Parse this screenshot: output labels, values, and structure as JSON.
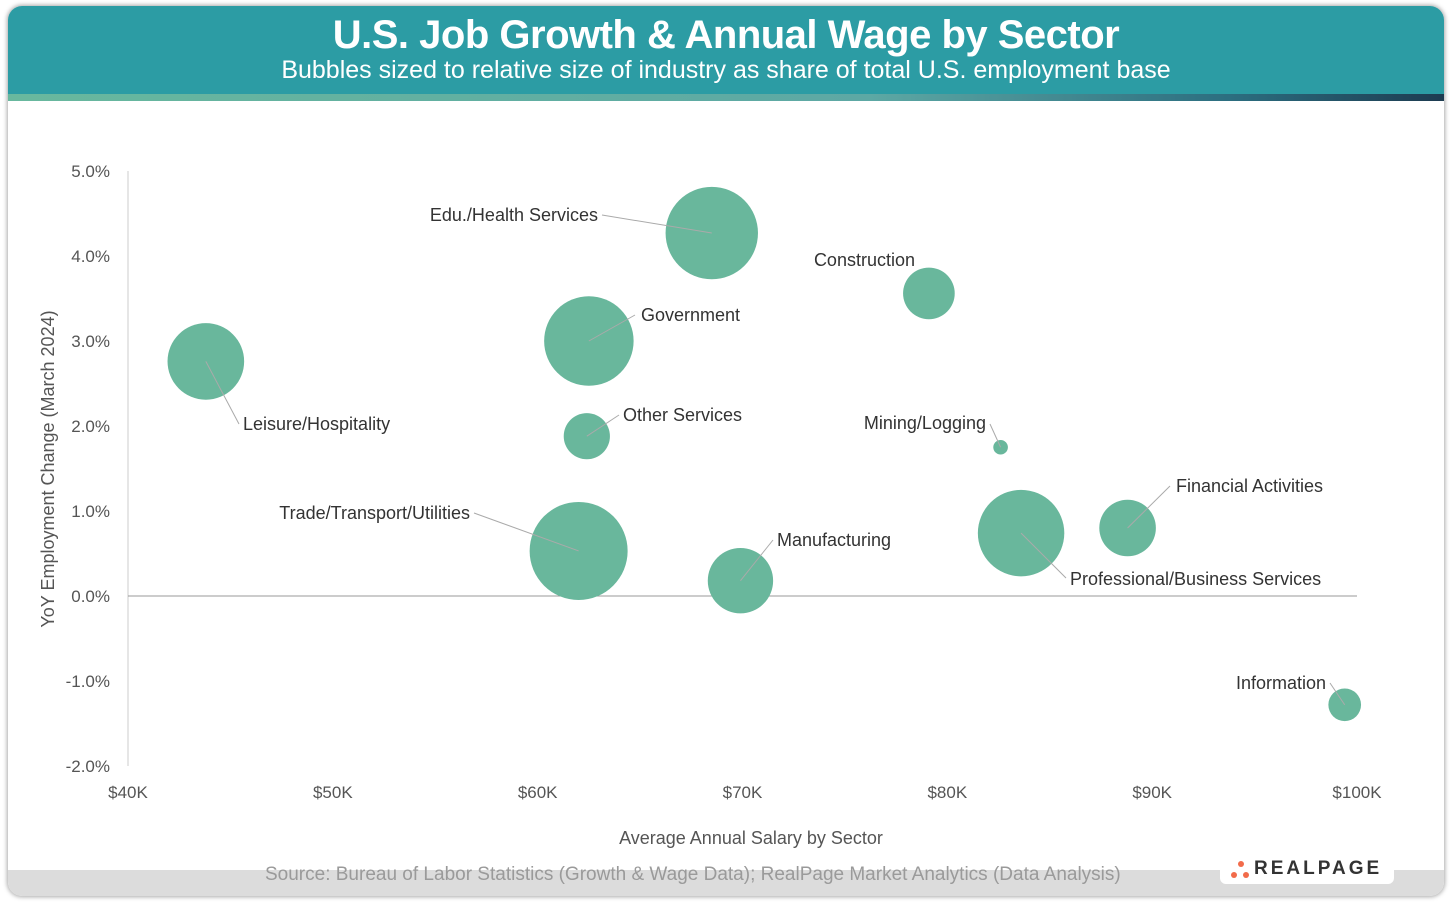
{
  "header": {
    "title": "U.S. Job Growth & Annual Wage by Sector",
    "subtitle": "Bubbles sized to relative size of industry as share of total U.S. employment base"
  },
  "footer": {
    "source": "Source: Bureau of Labor Statistics (Growth & Wage Data); RealPage Market Analytics (Data Analysis)",
    "logo": "REALPAGE"
  },
  "colors": {
    "header": "#2c9ca4",
    "bubble": "#69b79c",
    "logo_accent": "#f26b4a"
  },
  "chart_data": {
    "type": "bubble",
    "title": "U.S. Job Growth & Annual Wage by Sector",
    "xlabel": "Average Annual Salary by Sector",
    "ylabel": "YoY Employment Change (March 2024)",
    "xlim": [
      40000,
      100000
    ],
    "ylim": [
      -2.0,
      5.0
    ],
    "x_ticks": [
      "$40K",
      "$50K",
      "$60K",
      "$70K",
      "$80K",
      "$90K",
      "$100K"
    ],
    "y_ticks": [
      "5.0%",
      "4.0%",
      "3.0%",
      "2.0%",
      "1.0%",
      "0.0%",
      "-1.0%",
      "-2.0%"
    ],
    "grid": false,
    "size_note": "employment share (%)",
    "points": [
      {
        "label": "Edu./Health Services",
        "x": 68500,
        "y": 4.27,
        "size": 16
      },
      {
        "label": "Construction",
        "x": 79100,
        "y": 3.56,
        "size": 5
      },
      {
        "label": "Government",
        "x": 62500,
        "y": 3.0,
        "size": 15
      },
      {
        "label": "Leisure/Hospitality",
        "x": 43800,
        "y": 2.76,
        "size": 11
      },
      {
        "label": "Other Services",
        "x": 62400,
        "y": 1.88,
        "size": 4
      },
      {
        "label": "Mining/Logging",
        "x": 82600,
        "y": 1.75,
        "size": 0.4
      },
      {
        "label": "Financial Activities",
        "x": 88800,
        "y": 0.8,
        "size": 6
      },
      {
        "label": "Professional/Business Services",
        "x": 83600,
        "y": 0.74,
        "size": 14
      },
      {
        "label": "Trade/Transport/Utilities",
        "x": 62000,
        "y": 0.53,
        "size": 18
      },
      {
        "label": "Manufacturing",
        "x": 69900,
        "y": 0.18,
        "size": 8
      },
      {
        "label": "Information",
        "x": 99400,
        "y": -1.28,
        "size": 2
      }
    ]
  }
}
